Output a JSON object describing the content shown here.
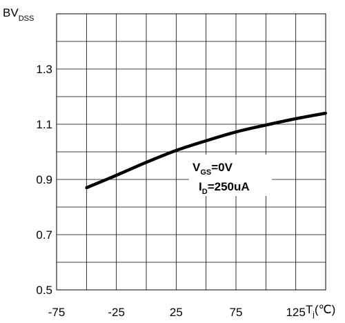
{
  "chart_data": {
    "type": "line",
    "title": "",
    "ylabel": {
      "main": "BV",
      "sub": "DSS"
    },
    "xlabel": {
      "main": "T",
      "sub": "j",
      "unit": "(℃)"
    },
    "xlim": [
      -75,
      150
    ],
    "ylim": [
      0.5,
      1.5
    ],
    "x_ticks": [
      -75,
      -25,
      25,
      75,
      125
    ],
    "y_ticks": [
      0.5,
      0.7,
      0.9,
      1.1,
      1.3
    ],
    "x_tick_labels": [
      "-75",
      "-25",
      "25",
      "75",
      "125"
    ],
    "y_tick_labels": [
      "0.5",
      "0.7",
      "0.9",
      "1.1",
      "1.3"
    ],
    "grid": true,
    "series": [
      {
        "x": [
          -50,
          -25,
          0,
          25,
          50,
          75,
          100,
          125,
          150
        ],
        "y": [
          0.87,
          0.915,
          0.962,
          1.005,
          1.04,
          1.072,
          1.097,
          1.12,
          1.14
        ]
      }
    ],
    "annotations": {
      "line1_main": "V",
      "line1_sub": "GS",
      "line1_rest": "=0V",
      "line2_main": "I",
      "line2_sub": "D",
      "line2_rest": "=250uA"
    }
  }
}
